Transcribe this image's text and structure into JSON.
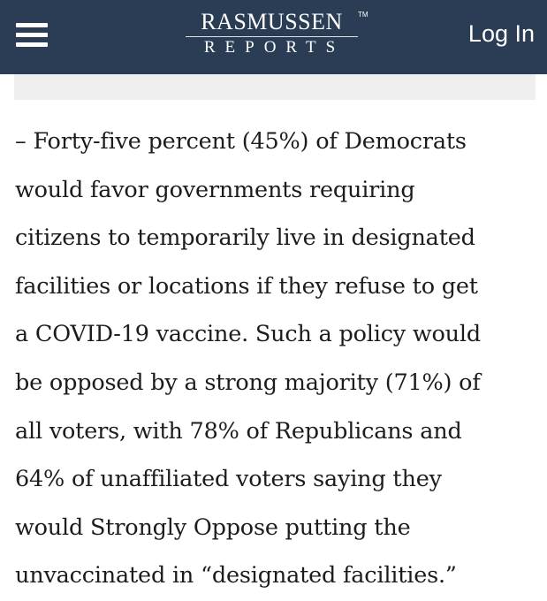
{
  "header": {
    "logo_top": "RASMUSSEN",
    "logo_tm": "TM",
    "logo_bottom": "REPORTS",
    "login_label": "Log In",
    "menu_icon": "hamburger-menu-icon",
    "background_color": "#2a3d54"
  },
  "article": {
    "lines": [
      "– Forty-five percent (45%) of Democrats",
      "would favor governments requiring",
      "citizens to temporarily live in designated",
      "facilities or locations if they refuse to get",
      "a COVID-19 vaccine. Such a policy would",
      "be opposed by a strong majority (71%) of",
      "all voters, with 78% of Republicans and",
      "64% of unaffiliated voters saying they",
      "would Strongly Oppose putting the",
      "unvaccinated in “designated facilities.”"
    ]
  }
}
